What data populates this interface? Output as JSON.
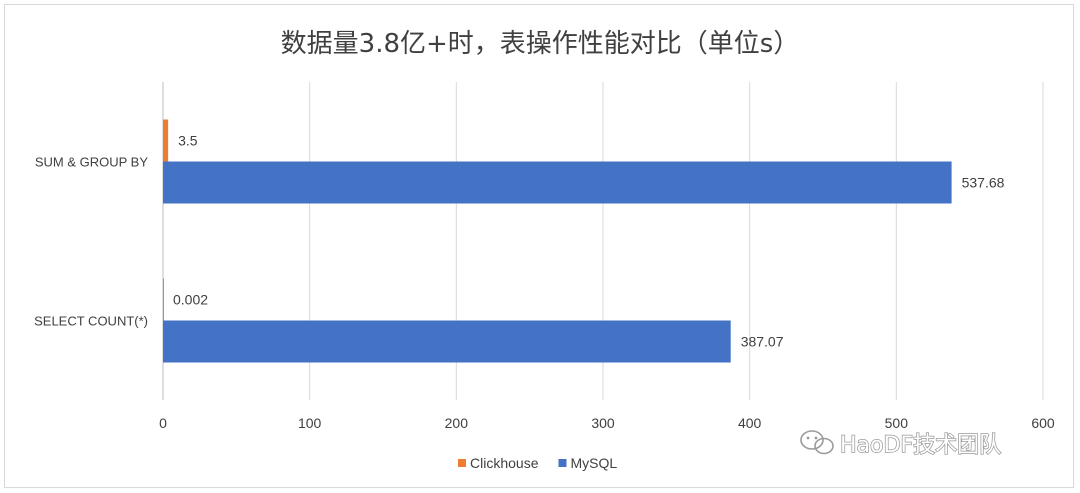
{
  "chart_data": {
    "type": "bar",
    "orientation": "horizontal",
    "title": "数据量3.8亿+时，表操作性能对比（单位s）",
    "categories": [
      "SUM & GROUP BY",
      "SELECT COUNT(*)"
    ],
    "series": [
      {
        "name": "Clickhouse",
        "color": "#ed7d31",
        "values": [
          3.5,
          0.002
        ],
        "labels": [
          "3.5",
          "0.002"
        ]
      },
      {
        "name": "MySQL",
        "color": "#4472c4",
        "values": [
          537.68,
          387.07
        ],
        "labels": [
          "537.68",
          "387.07"
        ]
      }
    ],
    "xlim": [
      0,
      600
    ],
    "xticks": [
      0,
      100,
      200,
      300,
      400,
      500,
      600
    ],
    "grid": true,
    "legend": "bottom"
  },
  "watermark": "HaoDF技术团队"
}
